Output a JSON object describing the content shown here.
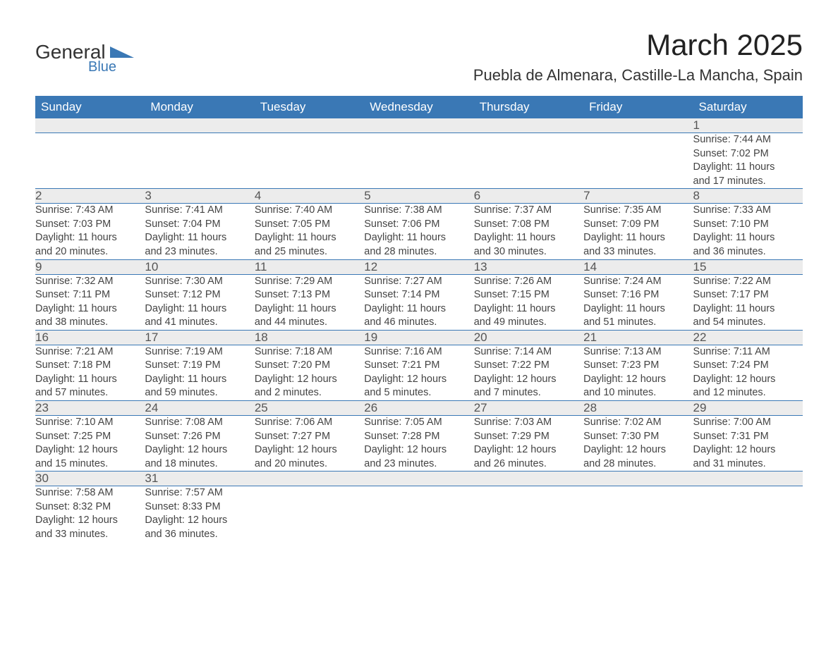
{
  "brand": {
    "part1": "General",
    "part2": "Blue",
    "logo_color": "#3a78b5"
  },
  "title": "March 2025",
  "location": "Puebla de Almenara, Castille-La Mancha, Spain",
  "colors": {
    "header_bg": "#3a78b5",
    "header_text": "#ffffff",
    "daynum_bg": "#ececec",
    "row_border": "#3a78b5",
    "body_text": "#444444"
  },
  "weekdays": [
    "Sunday",
    "Monday",
    "Tuesday",
    "Wednesday",
    "Thursday",
    "Friday",
    "Saturday"
  ],
  "weeks": [
    {
      "nums": [
        "",
        "",
        "",
        "",
        "",
        "",
        "1"
      ],
      "sunrise": [
        "",
        "",
        "",
        "",
        "",
        "",
        "Sunrise: 7:44 AM"
      ],
      "sunset": [
        "",
        "",
        "",
        "",
        "",
        "",
        "Sunset: 7:02 PM"
      ],
      "day1": [
        "",
        "",
        "",
        "",
        "",
        "",
        "Daylight: 11 hours"
      ],
      "day2": [
        "",
        "",
        "",
        "",
        "",
        "",
        "and 17 minutes."
      ]
    },
    {
      "nums": [
        "2",
        "3",
        "4",
        "5",
        "6",
        "7",
        "8"
      ],
      "sunrise": [
        "Sunrise: 7:43 AM",
        "Sunrise: 7:41 AM",
        "Sunrise: 7:40 AM",
        "Sunrise: 7:38 AM",
        "Sunrise: 7:37 AM",
        "Sunrise: 7:35 AM",
        "Sunrise: 7:33 AM"
      ],
      "sunset": [
        "Sunset: 7:03 PM",
        "Sunset: 7:04 PM",
        "Sunset: 7:05 PM",
        "Sunset: 7:06 PM",
        "Sunset: 7:08 PM",
        "Sunset: 7:09 PM",
        "Sunset: 7:10 PM"
      ],
      "day1": [
        "Daylight: 11 hours",
        "Daylight: 11 hours",
        "Daylight: 11 hours",
        "Daylight: 11 hours",
        "Daylight: 11 hours",
        "Daylight: 11 hours",
        "Daylight: 11 hours"
      ],
      "day2": [
        "and 20 minutes.",
        "and 23 minutes.",
        "and 25 minutes.",
        "and 28 minutes.",
        "and 30 minutes.",
        "and 33 minutes.",
        "and 36 minutes."
      ]
    },
    {
      "nums": [
        "9",
        "10",
        "11",
        "12",
        "13",
        "14",
        "15"
      ],
      "sunrise": [
        "Sunrise: 7:32 AM",
        "Sunrise: 7:30 AM",
        "Sunrise: 7:29 AM",
        "Sunrise: 7:27 AM",
        "Sunrise: 7:26 AM",
        "Sunrise: 7:24 AM",
        "Sunrise: 7:22 AM"
      ],
      "sunset": [
        "Sunset: 7:11 PM",
        "Sunset: 7:12 PM",
        "Sunset: 7:13 PM",
        "Sunset: 7:14 PM",
        "Sunset: 7:15 PM",
        "Sunset: 7:16 PM",
        "Sunset: 7:17 PM"
      ],
      "day1": [
        "Daylight: 11 hours",
        "Daylight: 11 hours",
        "Daylight: 11 hours",
        "Daylight: 11 hours",
        "Daylight: 11 hours",
        "Daylight: 11 hours",
        "Daylight: 11 hours"
      ],
      "day2": [
        "and 38 minutes.",
        "and 41 minutes.",
        "and 44 minutes.",
        "and 46 minutes.",
        "and 49 minutes.",
        "and 51 minutes.",
        "and 54 minutes."
      ]
    },
    {
      "nums": [
        "16",
        "17",
        "18",
        "19",
        "20",
        "21",
        "22"
      ],
      "sunrise": [
        "Sunrise: 7:21 AM",
        "Sunrise: 7:19 AM",
        "Sunrise: 7:18 AM",
        "Sunrise: 7:16 AM",
        "Sunrise: 7:14 AM",
        "Sunrise: 7:13 AM",
        "Sunrise: 7:11 AM"
      ],
      "sunset": [
        "Sunset: 7:18 PM",
        "Sunset: 7:19 PM",
        "Sunset: 7:20 PM",
        "Sunset: 7:21 PM",
        "Sunset: 7:22 PM",
        "Sunset: 7:23 PM",
        "Sunset: 7:24 PM"
      ],
      "day1": [
        "Daylight: 11 hours",
        "Daylight: 11 hours",
        "Daylight: 12 hours",
        "Daylight: 12 hours",
        "Daylight: 12 hours",
        "Daylight: 12 hours",
        "Daylight: 12 hours"
      ],
      "day2": [
        "and 57 minutes.",
        "and 59 minutes.",
        "and 2 minutes.",
        "and 5 minutes.",
        "and 7 minutes.",
        "and 10 minutes.",
        "and 12 minutes."
      ]
    },
    {
      "nums": [
        "23",
        "24",
        "25",
        "26",
        "27",
        "28",
        "29"
      ],
      "sunrise": [
        "Sunrise: 7:10 AM",
        "Sunrise: 7:08 AM",
        "Sunrise: 7:06 AM",
        "Sunrise: 7:05 AM",
        "Sunrise: 7:03 AM",
        "Sunrise: 7:02 AM",
        "Sunrise: 7:00 AM"
      ],
      "sunset": [
        "Sunset: 7:25 PM",
        "Sunset: 7:26 PM",
        "Sunset: 7:27 PM",
        "Sunset: 7:28 PM",
        "Sunset: 7:29 PM",
        "Sunset: 7:30 PM",
        "Sunset: 7:31 PM"
      ],
      "day1": [
        "Daylight: 12 hours",
        "Daylight: 12 hours",
        "Daylight: 12 hours",
        "Daylight: 12 hours",
        "Daylight: 12 hours",
        "Daylight: 12 hours",
        "Daylight: 12 hours"
      ],
      "day2": [
        "and 15 minutes.",
        "and 18 minutes.",
        "and 20 minutes.",
        "and 23 minutes.",
        "and 26 minutes.",
        "and 28 minutes.",
        "and 31 minutes."
      ]
    },
    {
      "nums": [
        "30",
        "31",
        "",
        "",
        "",
        "",
        ""
      ],
      "sunrise": [
        "Sunrise: 7:58 AM",
        "Sunrise: 7:57 AM",
        "",
        "",
        "",
        "",
        ""
      ],
      "sunset": [
        "Sunset: 8:32 PM",
        "Sunset: 8:33 PM",
        "",
        "",
        "",
        "",
        ""
      ],
      "day1": [
        "Daylight: 12 hours",
        "Daylight: 12 hours",
        "",
        "",
        "",
        "",
        ""
      ],
      "day2": [
        "and 33 minutes.",
        "and 36 minutes.",
        "",
        "",
        "",
        "",
        ""
      ]
    }
  ]
}
